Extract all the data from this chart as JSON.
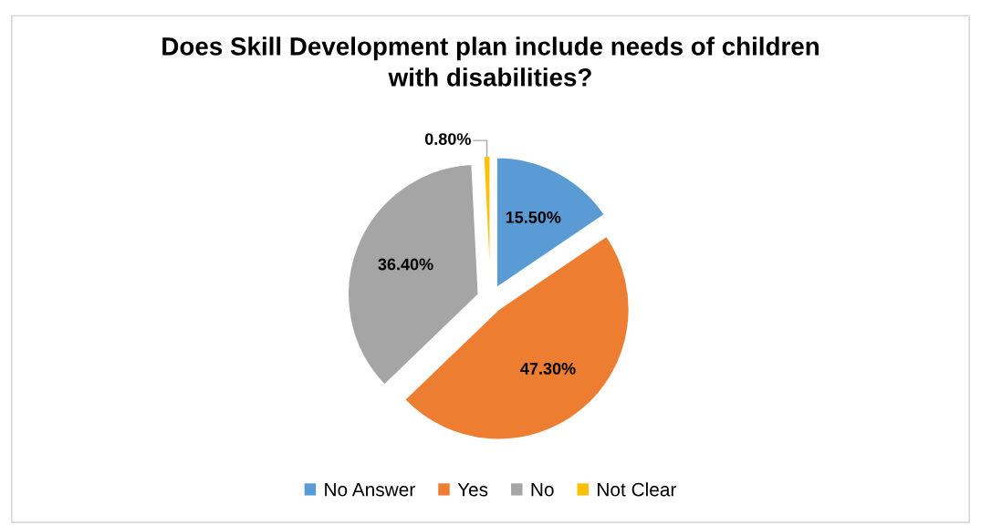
{
  "chart_data": {
    "type": "pie",
    "title": "Does Skill Development plan include needs of children\nwith disabilities?",
    "categories": [
      "No Answer",
      "Yes",
      "No",
      "Not Clear"
    ],
    "values": [
      15.5,
      47.3,
      36.4,
      0.8
    ],
    "colors": [
      "#5b9bd5",
      "#ed7d31",
      "#a5a5a5",
      "#ffc000"
    ],
    "value_labels": [
      "15.50%",
      "47.30%",
      "36.40%",
      "0.80%"
    ],
    "legend": "bottom"
  }
}
